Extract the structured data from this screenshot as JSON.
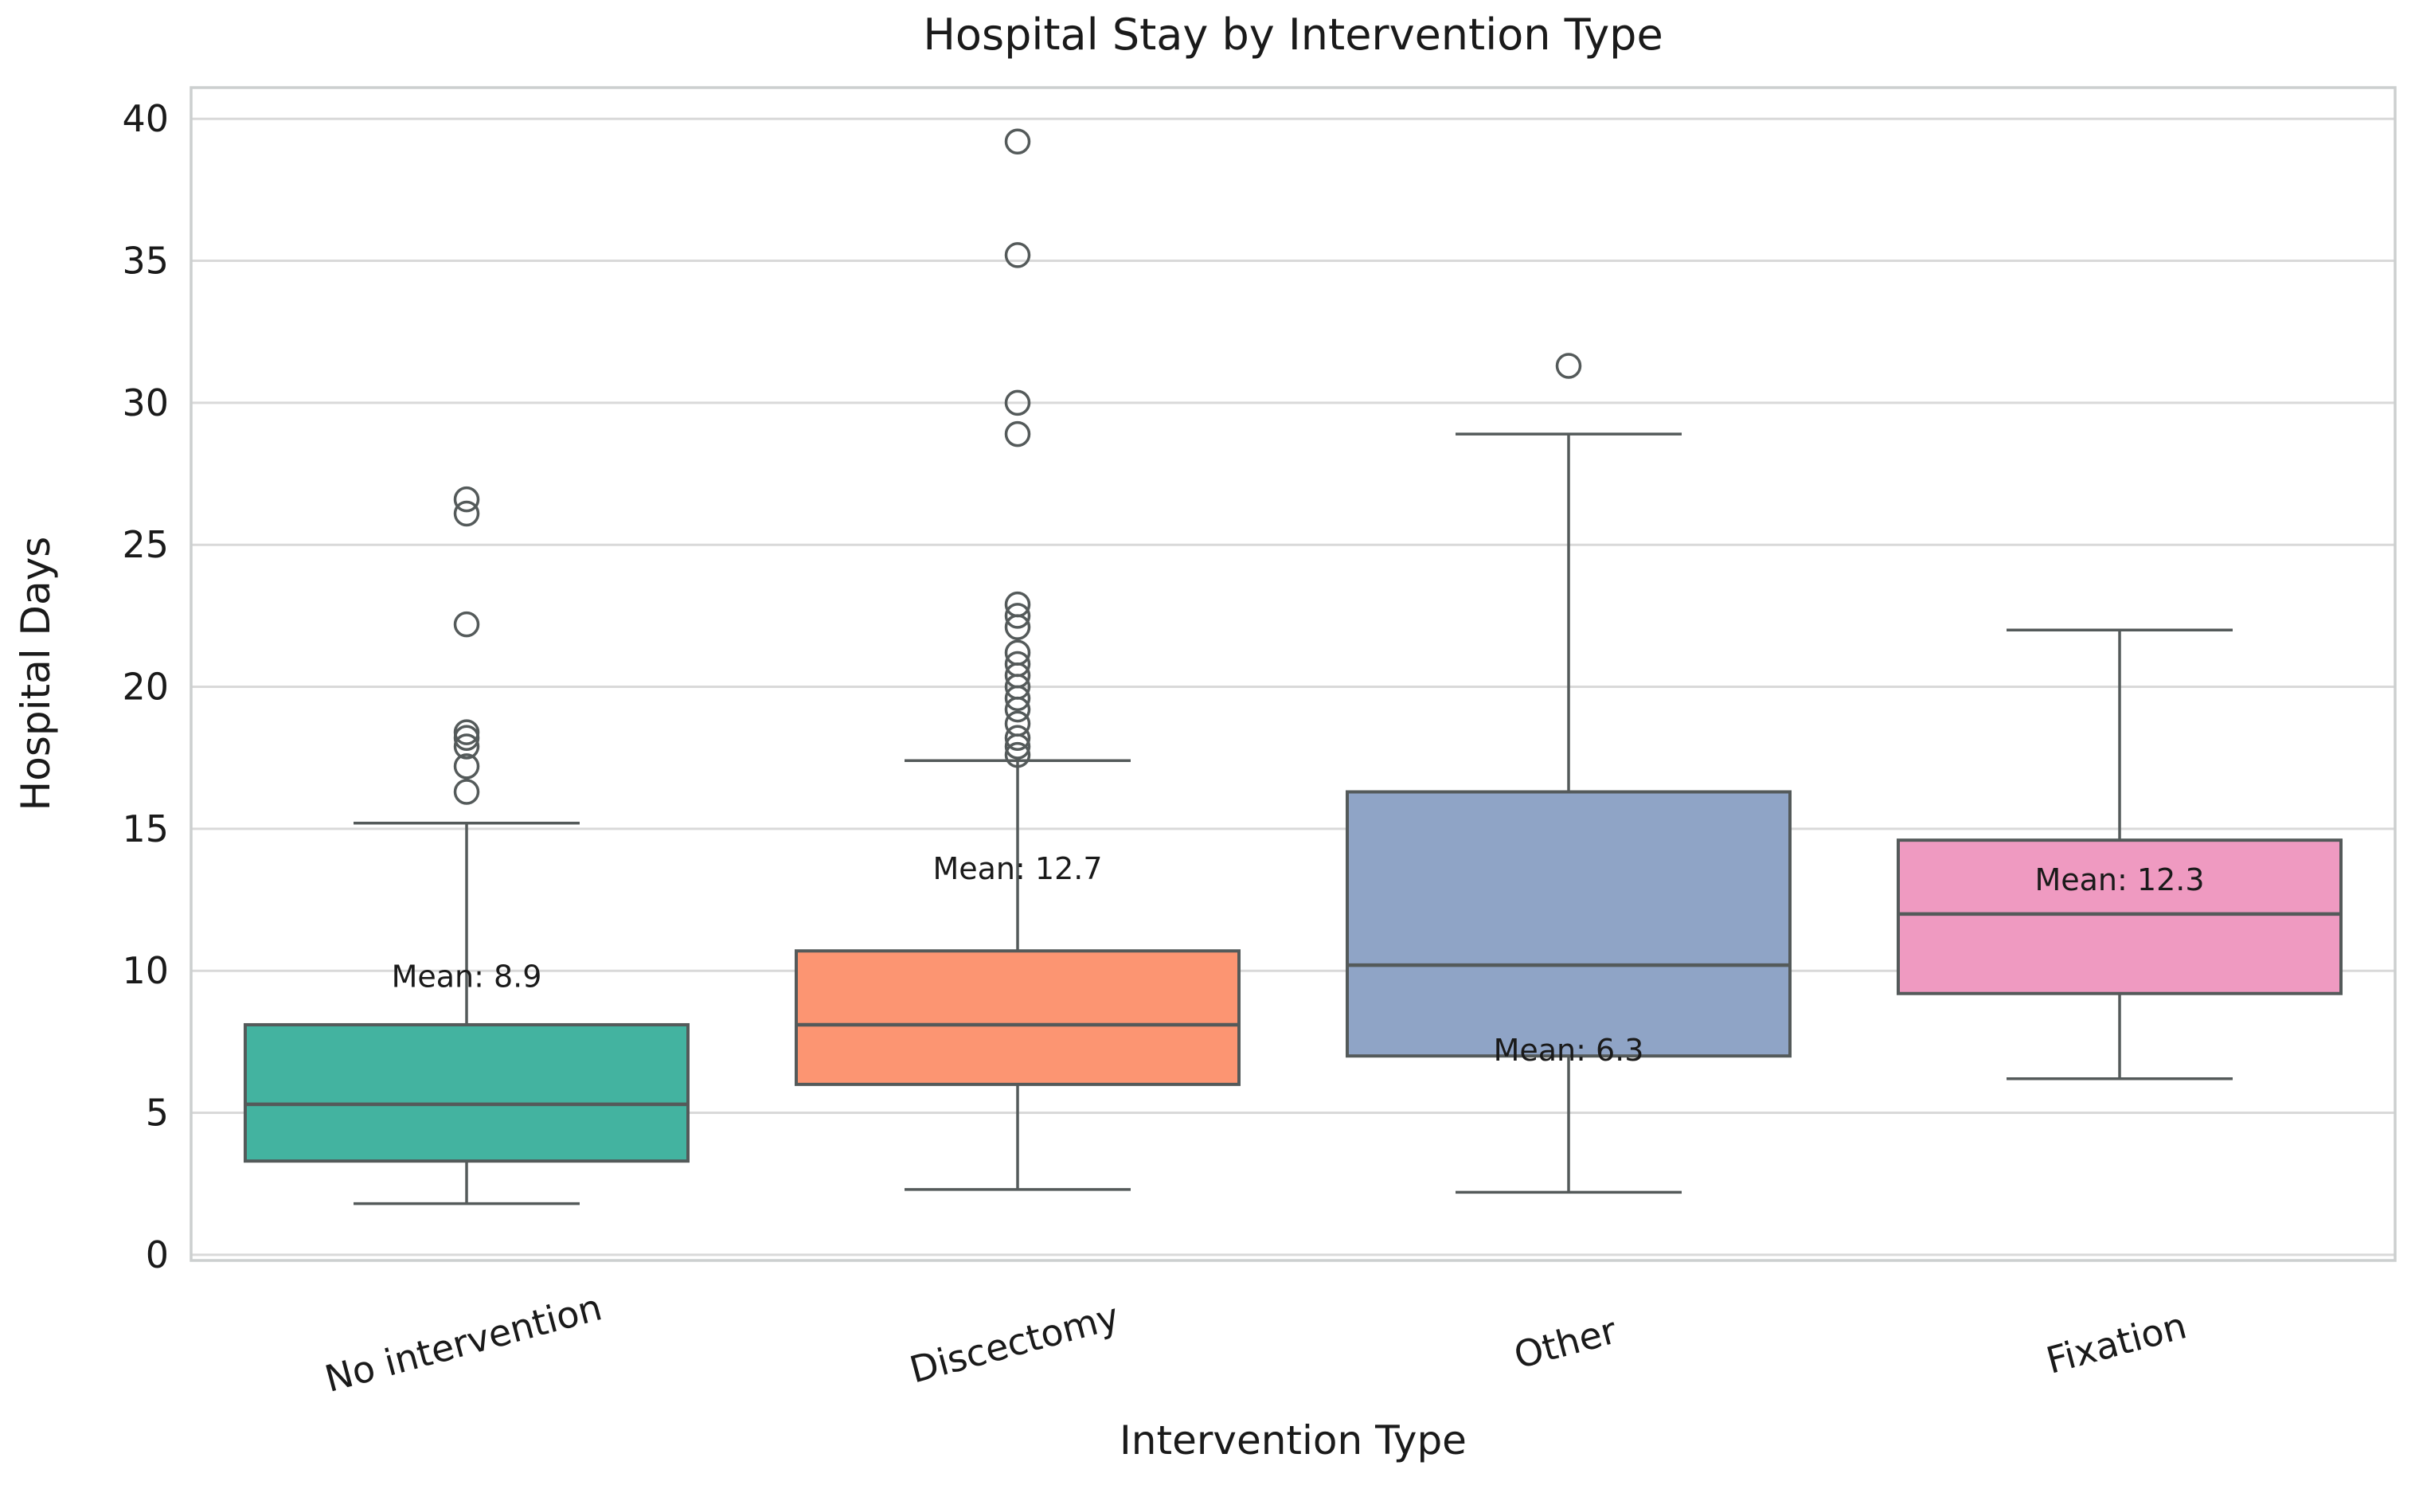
{
  "figure": {
    "title": "Hospital Stay by Intervention Type",
    "xlabel": "Intervention Type",
    "ylabel": "Hospital Days"
  },
  "chart_data": {
    "type": "boxplot",
    "title": "Hospital Stay by Intervention Type",
    "xlabel": "Intervention Type",
    "ylabel": "Hospital Days",
    "ylim": [
      -0.2,
      41.1
    ],
    "yticks": [
      0,
      5,
      10,
      15,
      20,
      25,
      30,
      35,
      40
    ],
    "grid": "horizontal",
    "legend": "none",
    "x_tick_rotation_deg": -15,
    "categories": [
      "No intervention",
      "Discectomy",
      "Other",
      "Fixation"
    ],
    "series": [
      {
        "name": "No intervention",
        "color": "#43b3a0",
        "whisker_low": 1.8,
        "q1": 3.3,
        "median": 5.3,
        "q3": 8.1,
        "whisker_high": 15.2,
        "outliers": [
          16.3,
          17.2,
          17.9,
          18.2,
          18.4,
          22.2,
          26.1,
          26.6
        ],
        "mean": 8.9,
        "mean_label": "Mean: 8.9"
      },
      {
        "name": "Discectomy",
        "color": "#fc9572",
        "whisker_low": 2.3,
        "q1": 6.0,
        "median": 8.1,
        "q3": 10.7,
        "whisker_high": 17.4,
        "outliers": [
          17.6,
          17.9,
          18.2,
          18.7,
          19.2,
          19.6,
          20.0,
          20.4,
          20.8,
          21.2,
          22.1,
          22.5,
          22.9,
          28.9,
          30.0,
          35.2,
          39.2
        ],
        "mean": 12.7,
        "mean_label": "Mean: 12.7"
      },
      {
        "name": "Other",
        "color": "#8fa4c6",
        "whisker_low": 2.2,
        "q1": 7.0,
        "median": 10.2,
        "q3": 16.3,
        "whisker_high": 28.9,
        "outliers": [
          31.3
        ],
        "mean": 6.3,
        "mean_label": "Mean: 6.3"
      },
      {
        "name": "Fixation",
        "color": "#ef9ac1",
        "whisker_low": 6.2,
        "q1": 9.2,
        "median": 12.0,
        "q3": 14.6,
        "whisker_high": 22.0,
        "outliers": [],
        "mean": 12.3,
        "mean_label": "Mean: 12.3"
      }
    ],
    "style": {
      "line_color": "#545a5a",
      "grid_color": "#d9d9d9",
      "spine_color": "#cccfcf",
      "background": "#ffffff"
    }
  }
}
